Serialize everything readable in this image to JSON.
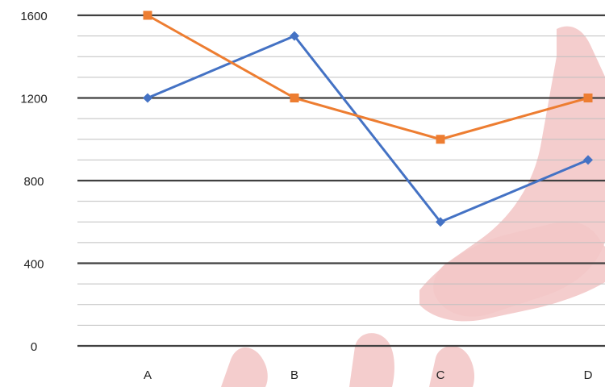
{
  "chart_data": {
    "type": "line",
    "categories": [
      "A",
      "B",
      "C",
      "D"
    ],
    "series": [
      {
        "values": [
          1200,
          1500,
          600,
          900
        ],
        "color": "#4472c4",
        "marker": "diamond"
      },
      {
        "values": [
          1600,
          1200,
          1000,
          1200
        ],
        "color": "#ed7d31",
        "marker": "square"
      }
    ],
    "title": "",
    "xlabel": "",
    "ylabel": "",
    "ylim": [
      0,
      1600
    ],
    "y_ticks": [
      0,
      400,
      800,
      1200,
      1600
    ],
    "y_ticks_text": [
      "0",
      "400",
      "800",
      "1200",
      "1600"
    ],
    "minor_gridline_step": 100,
    "grid": true,
    "legend": "none"
  },
  "colors": {
    "major_grid": "#404040",
    "minor_grid": "#bfbfbf",
    "axis_text": "#222222",
    "watermark": "#f3c8c8"
  }
}
